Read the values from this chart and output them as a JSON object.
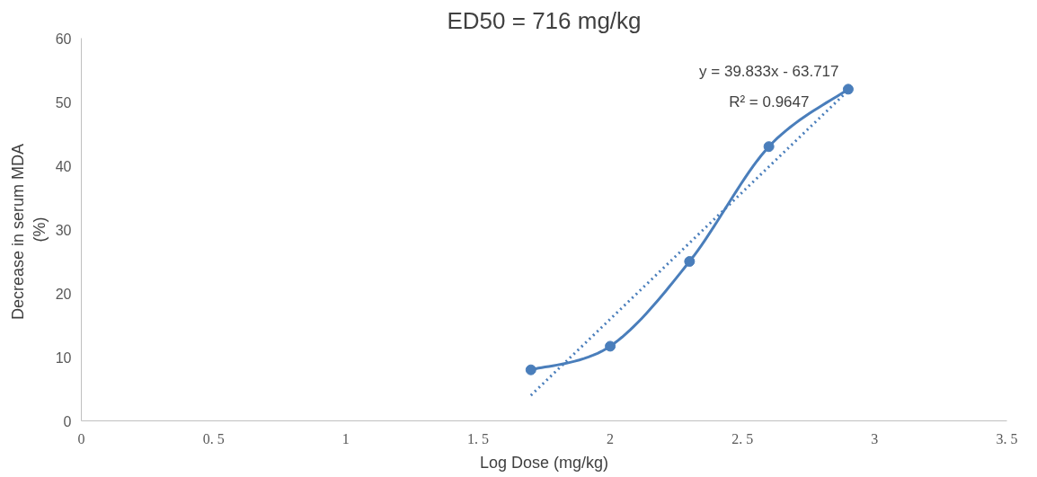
{
  "chart_data": {
    "type": "line",
    "title": "ED50 = 716 mg/kg",
    "xlabel": "Log Dose (mg/kg)",
    "ylabel": "Decrease in serum  MDA\n(%)",
    "series": [
      {
        "color": "#4a7ebb",
        "marker": "circle",
        "line_style": "solid",
        "x": [
          1.7,
          2.0,
          2.3,
          2.6,
          2.9
        ],
        "values": [
          8.0,
          11.7,
          25.0,
          43.0,
          52.0
        ]
      },
      {
        "type": "line",
        "color": "#4a7ebb",
        "marker": "none",
        "line_style": "dotted",
        "x": [
          1.7,
          2.9
        ],
        "values": [
          4.0,
          51.8
        ]
      }
    ],
    "annotations": [
      "y = 39.833x - 63.717",
      "R² = 0.9647"
    ],
    "xlim": [
      0,
      3.5
    ],
    "xticks": [
      {
        "value": 0,
        "label": "0"
      },
      {
        "value": 0.5,
        "label": "0. 5"
      },
      {
        "value": 1,
        "label": "1"
      },
      {
        "value": 1.5,
        "label": "1. 5"
      },
      {
        "value": 2,
        "label": "2"
      },
      {
        "value": 2.5,
        "label": "2. 5"
      },
      {
        "value": 3,
        "label": "3"
      },
      {
        "value": 3.5,
        "label": "3. 5"
      }
    ],
    "ylim": [
      0,
      60
    ],
    "yticks": [
      0,
      10,
      20,
      30,
      40,
      50,
      60
    ],
    "grid": false
  }
}
